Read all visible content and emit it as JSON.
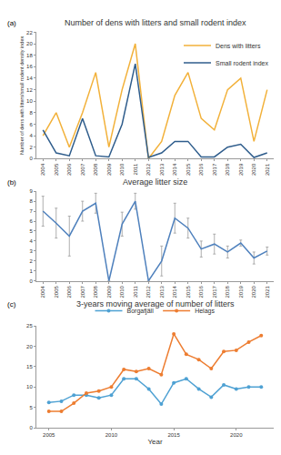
{
  "chart_data": [
    {
      "type": "line",
      "panel_label": "(a)",
      "title": "Number of dens with litters and small rodent index",
      "y_label": "Number of dens with litters/small rodent density index",
      "x": [
        2004,
        2005,
        2006,
        2007,
        2008,
        2009,
        2010,
        2011,
        2012,
        2013,
        2014,
        2015,
        2016,
        2017,
        2018,
        2019,
        2020,
        2021
      ],
      "series": [
        {
          "name": "Dens with litters",
          "color": "#f2b13a",
          "values": [
            4,
            8,
            2,
            8,
            15,
            2,
            12,
            20,
            0,
            3,
            11,
            15,
            7,
            5,
            12,
            14,
            3,
            12
          ]
        },
        {
          "name": "Small rodent index",
          "color": "#2f5d8c",
          "values": [
            5,
            1,
            0.5,
            7,
            0.5,
            0.3,
            6,
            16.5,
            0.2,
            1,
            3,
            3,
            0.3,
            0.3,
            2,
            2.5,
            0.2,
            1
          ]
        }
      ],
      "xlim": [
        2003.5,
        2021.5
      ],
      "xticks": [
        2004,
        2005,
        2006,
        2007,
        2008,
        2009,
        2010,
        2011,
        2012,
        2013,
        2014,
        2015,
        2016,
        2017,
        2018,
        2019,
        2020,
        2021
      ],
      "ylim": [
        0,
        22
      ],
      "yticks": [
        0,
        2,
        4,
        6,
        8,
        10,
        12,
        14,
        16,
        18,
        20,
        22
      ],
      "grid": false,
      "legend": "upper right"
    },
    {
      "type": "line",
      "panel_label": "(b)",
      "title": "Average litter size",
      "x": [
        2004,
        2005,
        2006,
        2007,
        2008,
        2009,
        2010,
        2011,
        2012,
        2013,
        2014,
        2015,
        2016,
        2017,
        2018,
        2019,
        2020,
        2021
      ],
      "values": [
        7,
        5.8,
        4.5,
        7,
        7.8,
        0,
        5.7,
        8,
        0,
        2,
        6.3,
        5.3,
        3.2,
        3.7,
        2.9,
        3.8,
        2.3,
        3.0
      ],
      "errors": [
        1.5,
        1.5,
        2,
        1,
        1,
        null,
        1.2,
        0.8,
        null,
        1.5,
        1.5,
        1,
        0.8,
        1,
        0.6,
        0.3,
        0.6,
        0.4
      ],
      "color": "#4f81bd",
      "xlim": [
        2003.5,
        2021.5
      ],
      "xticks": [
        2004,
        2005,
        2006,
        2007,
        2008,
        2009,
        2010,
        2011,
        2012,
        2013,
        2014,
        2015,
        2016,
        2017,
        2018,
        2019,
        2020,
        2021
      ],
      "ylim": [
        0,
        9
      ],
      "yticks": [
        0,
        1,
        2,
        3,
        4,
        5,
        6,
        7,
        8,
        9
      ],
      "grid": false
    },
    {
      "type": "line",
      "panel_label": "(c)",
      "title": "3-years moving average of number of litters",
      "x_label": "Year",
      "x": [
        2005,
        2006,
        2007,
        2008,
        2009,
        2010,
        2011,
        2012,
        2013,
        2014,
        2015,
        2016,
        2017,
        2018,
        2019,
        2020,
        2021,
        2022
      ],
      "series": [
        {
          "name": "Borgafjäll",
          "color": "#4ea1d3",
          "marker": "circle",
          "values": [
            6.2,
            6.5,
            8,
            8,
            7.3,
            8,
            12,
            12,
            9.5,
            5.8,
            11,
            12,
            9.5,
            7.5,
            10.5,
            9.5,
            10,
            10
          ]
        },
        {
          "name": "Helags",
          "color": "#ed7d31",
          "marker": "circle",
          "values": [
            4,
            4,
            6,
            8.5,
            9,
            10,
            14.3,
            13.8,
            14.5,
            13,
            23,
            18,
            16.7,
            14.5,
            18.7,
            19,
            21,
            22.6
          ]
        }
      ],
      "xlim": [
        2004,
        2023
      ],
      "xticks": [
        2005,
        2010,
        2015,
        2020
      ],
      "ylim": [
        0,
        25
      ],
      "yticks": [
        0,
        5,
        10,
        15,
        20,
        25
      ],
      "grid": false,
      "legend": "top"
    }
  ]
}
